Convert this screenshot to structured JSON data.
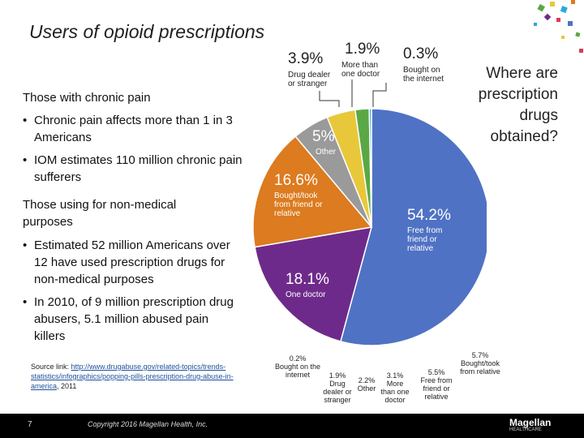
{
  "title": "Users of opioid prescriptions",
  "left": {
    "chronic_heading": "Those with chronic pain",
    "chronic_bullets": [
      "Chronic pain affects more than 1 in 3 Americans",
      "IOM estimates 110 million chronic pain sufferers"
    ],
    "nonmedical_heading": "Those using for non-medical purposes",
    "nonmedical_bullets": [
      "Estimated  52 million Americans over 12 have used prescription drugs for non-medical purposes",
      "In 2010, of 9 million prescription drug abusers, 5.1 million abused pain killers"
    ],
    "source_prefix": "Source link: ",
    "source_link": "http://www.drugabuse.gov/related-topics/trends-statistics/infographics/popping-pills-prescription-drug-abuse-in-america",
    "source_suffix": ", 2011"
  },
  "question": "Where are prescription drugs obtained?",
  "chart_data": {
    "type": "pie",
    "title": "Where are prescription drugs obtained?",
    "slices": [
      {
        "pct": "54.2%",
        "value": 54.2,
        "label": "Free from friend or relative",
        "color": "#4f72c4"
      },
      {
        "pct": "18.1%",
        "value": 18.1,
        "label": "One doctor",
        "color": "#6e2a8a"
      },
      {
        "pct": "16.6%",
        "value": 16.6,
        "label": "Bought/took from friend or relative",
        "color": "#dc7b1f"
      },
      {
        "pct": "5%",
        "value": 5.0,
        "label": "Other",
        "color": "#9a9a9a"
      },
      {
        "pct": "3.9%",
        "value": 3.9,
        "label": "Drug dealer or stranger",
        "color": "#e8c83a"
      },
      {
        "pct": "1.9%",
        "value": 1.9,
        "label": "More than one doctor",
        "color": "#5aa845"
      },
      {
        "pct": "0.3%",
        "value": 0.3,
        "label": "Bought on the internet",
        "color": "#2aa9e0"
      }
    ],
    "breakdown": [
      {
        "pct": "0.2%",
        "label": "Bought on the internet"
      },
      {
        "pct": "1.9%",
        "label": "Drug dealer or stranger"
      },
      {
        "pct": "2.2%",
        "label": "Other"
      },
      {
        "pct": "3.1%",
        "label": "More than one doctor"
      },
      {
        "pct": "5.5%",
        "label": "Free from friend or relative"
      },
      {
        "pct": "5.7%",
        "label": "Bought/took from relative"
      }
    ]
  },
  "footer": {
    "page": "7",
    "copyright": "Copyright 2016 Magellan Health, Inc.",
    "logo": "Magellan",
    "logo_sub": "HEALTHCARE"
  }
}
